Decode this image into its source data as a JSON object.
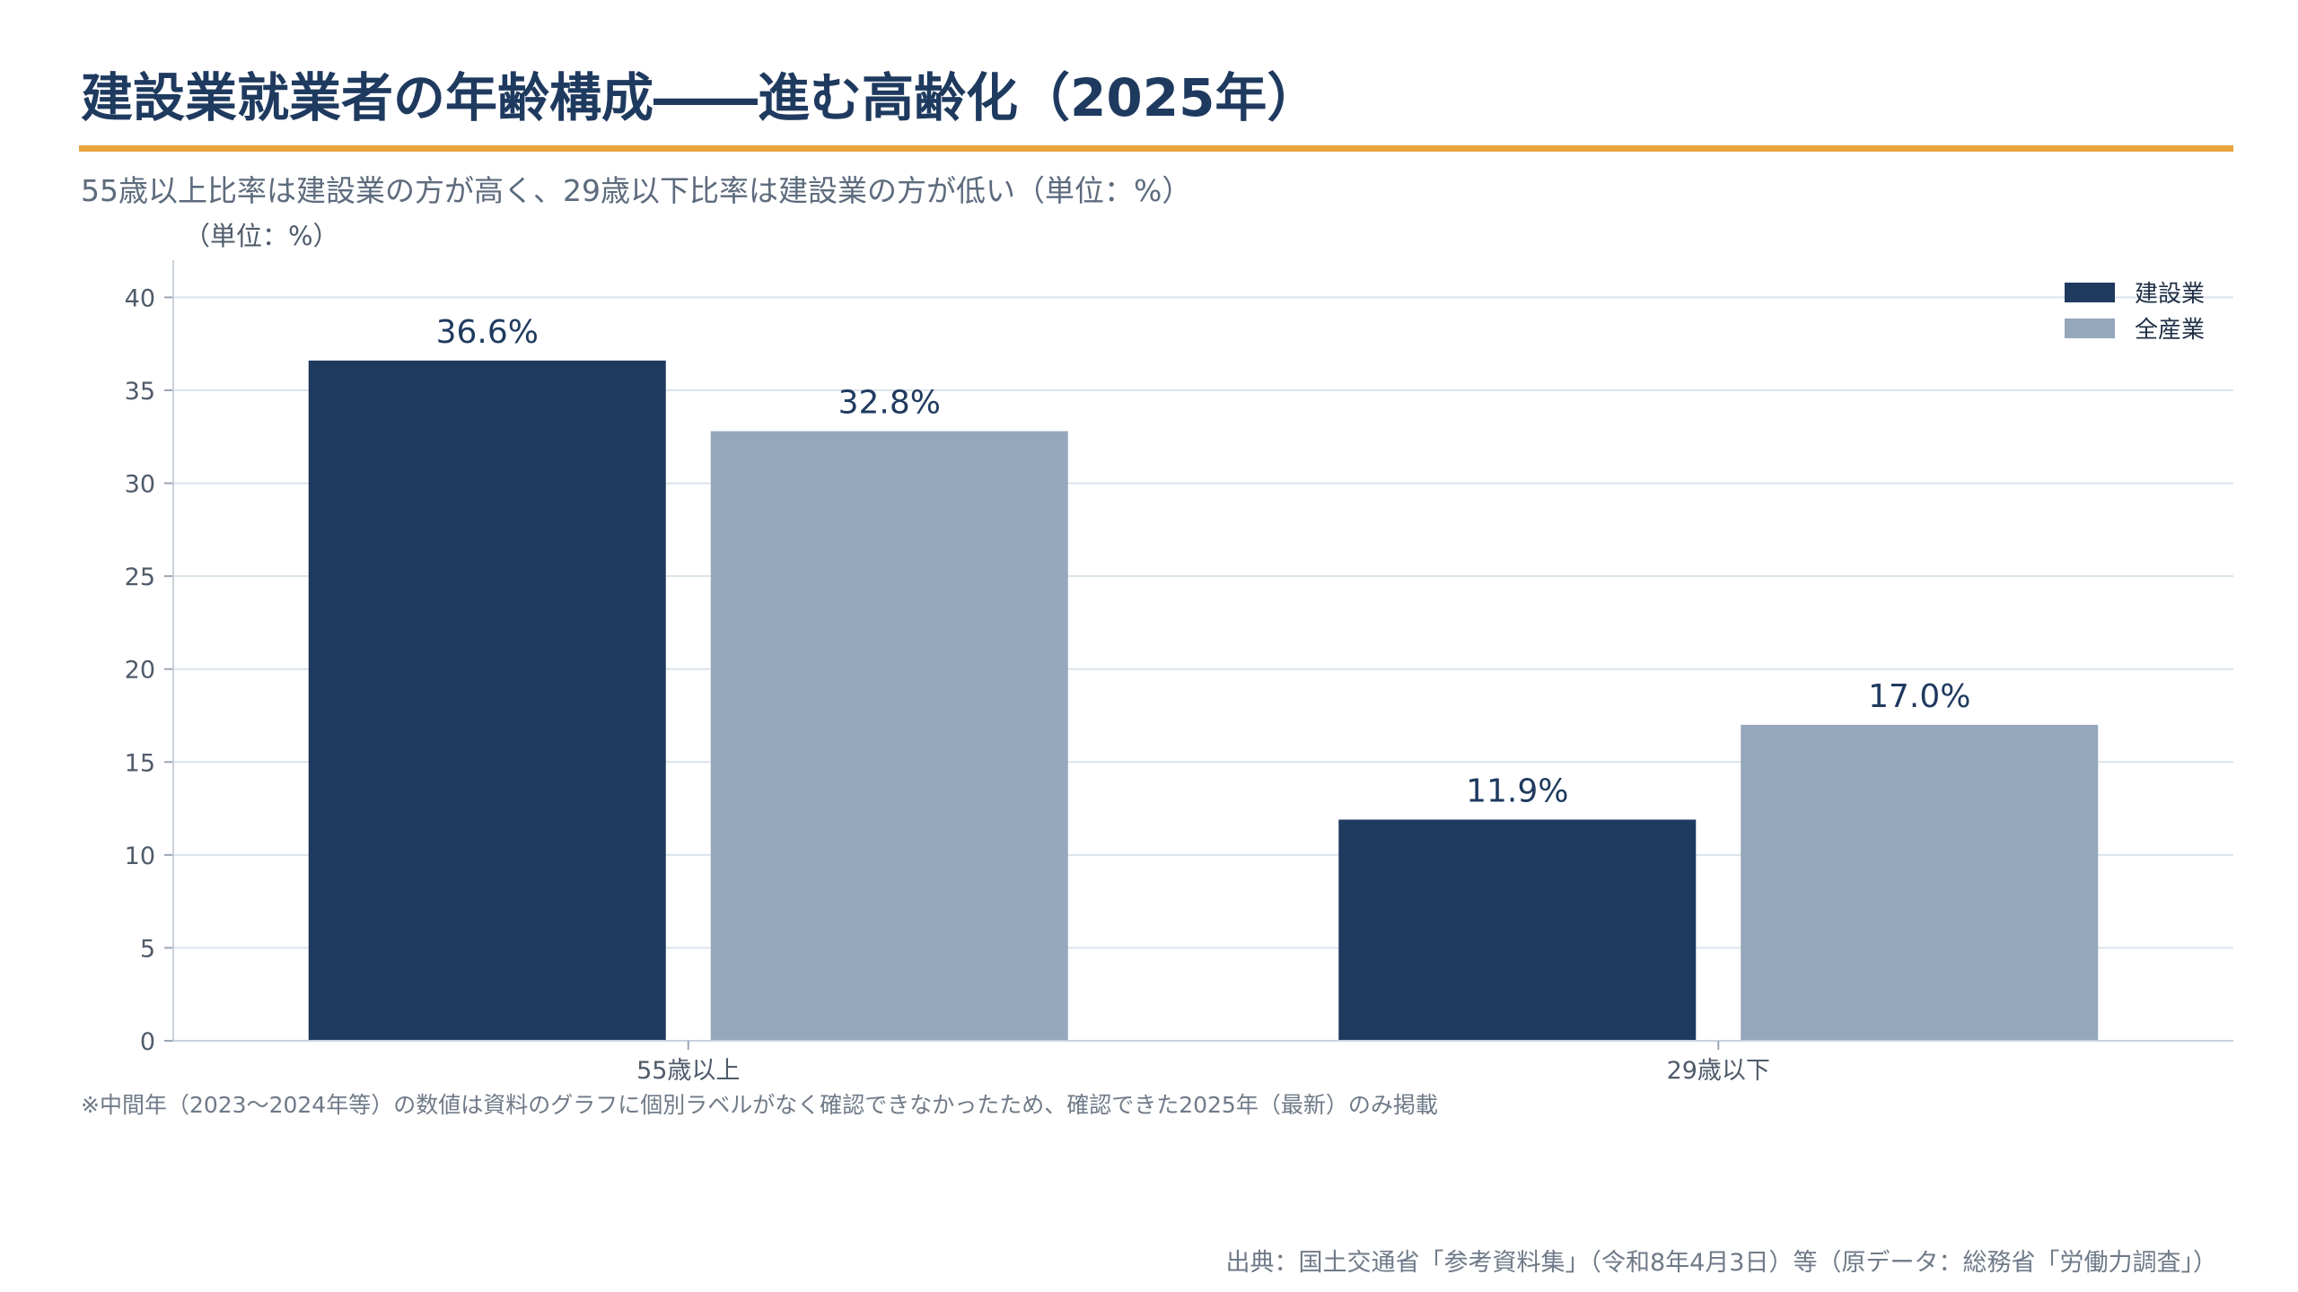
{
  "title": "建設業就業者の年齢構成――進む高齢化（2025年）",
  "subtitle": "55歳以上比率は建設業の方が高く、29歳以下比率は建設業の方が低い（単位：%）",
  "footnote": "※中間年（2023〜2024年等）の数値は資料のグラフに個別ラベルがなく確認できなかったため、確認できた2025年（最新）のみ掲載",
  "source": "出典：国土交通省「参考資料集」（令和8年4月3日）等（原データ：総務省「労働力調査」）",
  "colors": {
    "accent": "#e8a33d",
    "construction": "#1f3a5f",
    "all_industries": "#95a7bb"
  },
  "chart_data": {
    "type": "bar",
    "ylabel": "（単位：%）",
    "categories": [
      "55歳以上",
      "29歳以下"
    ],
    "series": [
      {
        "name": "建設業",
        "values": [
          36.6,
          11.9
        ],
        "labels": [
          "36.6%",
          "11.9%"
        ]
      },
      {
        "name": "全産業",
        "values": [
          32.8,
          17.0
        ],
        "labels": [
          "32.8%",
          "17.0%"
        ]
      }
    ],
    "ylim": [
      0,
      42
    ],
    "yticks": [
      0,
      5,
      10,
      15,
      20,
      25,
      30,
      35,
      40
    ],
    "grid": true,
    "legend": "top-right"
  }
}
